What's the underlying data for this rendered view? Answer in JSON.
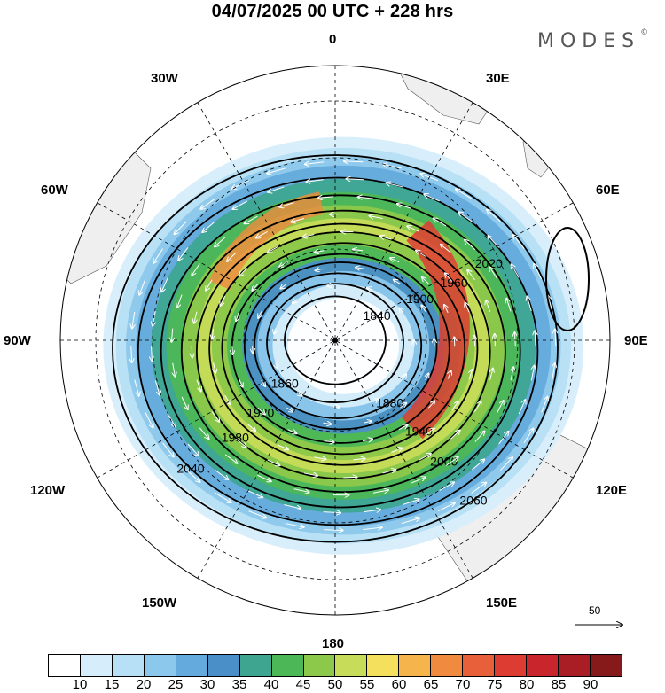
{
  "title": "04/07/2025  00 UTC  + 228 hrs",
  "brand": "MODES",
  "brand_mark": "©",
  "longitude_labels": {
    "0": "0",
    "30E": "30E",
    "60E": "60E",
    "90E": "90E",
    "120E": "120E",
    "150E": "150E",
    "180": "180",
    "150W": "150W",
    "120W": "120W",
    "90W": "90W",
    "60W": "60W",
    "30W": "30W"
  },
  "reference_vector": {
    "value": "50",
    "icon": "arrow-right-icon"
  },
  "colorbar": {
    "colors": [
      "#ffffff",
      "#d6eefb",
      "#b7dff6",
      "#8cc8ec",
      "#64aadc",
      "#4b8fc9",
      "#3ea590",
      "#4cb756",
      "#8cc84a",
      "#c7dc58",
      "#f4e05c",
      "#f5b44c",
      "#f08a3e",
      "#e8603a",
      "#dd3c32",
      "#c8262c",
      "#a81e24",
      "#861a1a"
    ],
    "tick_labels": [
      "10",
      "15",
      "20",
      "25",
      "30",
      "35",
      "40",
      "45",
      "50",
      "55",
      "60",
      "65",
      "70",
      "75",
      "80",
      "85",
      "90"
    ]
  },
  "chart_data": {
    "type": "polar-stereographic map",
    "projection": "south polar stereographic",
    "field_shaded": "wind speed",
    "contour_field": "geopotential height",
    "contour_labels": [
      "1840",
      "1860",
      "1880",
      "1900",
      "1920",
      "1940",
      "1960",
      "1980",
      "2000",
      "2020",
      "2040",
      "2060"
    ],
    "contours": [
      {
        "label": "1840",
        "r": 0.2,
        "cx": 0.0,
        "cy": 0.0,
        "a": 0.0
      },
      {
        "label": "1860",
        "r": 0.27,
        "cx": 0.0,
        "cy": 0.01,
        "a": 0.04
      },
      {
        "label": "1880",
        "r": 0.33,
        "cx": 0.01,
        "cy": 0.02,
        "a": 0.06
      },
      {
        "label": "1900",
        "r": 0.38,
        "cx": 0.02,
        "cy": 0.02,
        "a": 0.07
      },
      {
        "label": "1920",
        "r": 0.43,
        "cx": 0.02,
        "cy": 0.03,
        "a": 0.08
      },
      {
        "label": "1940",
        "r": 0.48,
        "cx": 0.03,
        "cy": 0.03,
        "a": 0.08
      },
      {
        "label": "1960",
        "r": 0.53,
        "cx": 0.03,
        "cy": 0.03,
        "a": 0.08
      },
      {
        "label": "1980",
        "r": 0.58,
        "cx": 0.03,
        "cy": 0.04,
        "a": 0.08
      },
      {
        "label": "2000",
        "r": 0.64,
        "cx": 0.03,
        "cy": 0.04,
        "a": 0.07
      },
      {
        "label": "2020",
        "r": 0.71,
        "cx": 0.02,
        "cy": 0.04,
        "a": 0.06
      },
      {
        "label": "2040",
        "r": 0.79,
        "cx": 0.01,
        "cy": 0.04,
        "a": 0.05
      },
      {
        "label": "2060",
        "r": 0.88,
        "cx": 0.0,
        "cy": 0.03,
        "a": 0.04
      }
    ],
    "jet_core_colors": [
      "#4b8fc9",
      "#4cb756",
      "#f4e05c",
      "#f08a3e",
      "#dd3c32"
    ],
    "wind_vectors": "white streamlines circulating clockwise around the pole"
  }
}
